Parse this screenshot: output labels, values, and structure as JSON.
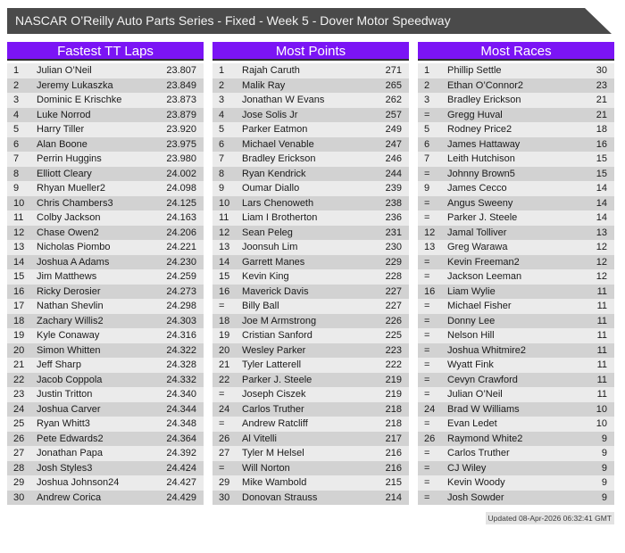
{
  "title_bar": {
    "text": "NASCAR O’Reilly Auto Parts Series - Fixed - Week 5 - Dover Motor Speedway"
  },
  "colors": {
    "accent_purple": "#7b14f5",
    "title_bar_bg": "#4a4a4a",
    "header_underline": "#303030",
    "row_light": "#ebebeb",
    "row_dark": "#d2d2d2",
    "row_text": "#1a1a1a"
  },
  "tables": [
    {
      "title": "Fastest TT Laps",
      "rows": [
        [
          "1",
          "Julian O’Neil",
          "23.807"
        ],
        [
          "2",
          "Jeremy Lukaszka",
          "23.849"
        ],
        [
          "3",
          "Dominic E Krischke",
          "23.873"
        ],
        [
          "4",
          "Luke Norrod",
          "23.879"
        ],
        [
          "5",
          "Harry Tiller",
          "23.920"
        ],
        [
          "6",
          "Alan Boone",
          "23.975"
        ],
        [
          "7",
          "Perrin Huggins",
          "23.980"
        ],
        [
          "8",
          "Elliott Cleary",
          "24.002"
        ],
        [
          "9",
          "Rhyan Mueller2",
          "24.098"
        ],
        [
          "10",
          "Chris Chambers3",
          "24.125"
        ],
        [
          "11",
          "Colby Jackson",
          "24.163"
        ],
        [
          "12",
          "Chase Owen2",
          "24.206"
        ],
        [
          "13",
          "Nicholas Piombo",
          "24.221"
        ],
        [
          "14",
          "Joshua A Adams",
          "24.230"
        ],
        [
          "15",
          "Jim Matthews",
          "24.259"
        ],
        [
          "16",
          "Ricky Derosier",
          "24.273"
        ],
        [
          "17",
          "Nathan Shevlin",
          "24.298"
        ],
        [
          "18",
          "Zachary Willis2",
          "24.303"
        ],
        [
          "19",
          "Kyle Conaway",
          "24.316"
        ],
        [
          "20",
          "Simon Whitten",
          "24.322"
        ],
        [
          "21",
          "Jeff Sharp",
          "24.328"
        ],
        [
          "22",
          "Jacob Coppola",
          "24.332"
        ],
        [
          "23",
          "Justin Tritton",
          "24.340"
        ],
        [
          "24",
          "Joshua Carver",
          "24.344"
        ],
        [
          "25",
          "Ryan Whitt3",
          "24.348"
        ],
        [
          "26",
          "Pete Edwards2",
          "24.364"
        ],
        [
          "27",
          "Jonathan Papa",
          "24.392"
        ],
        [
          "28",
          "Josh Styles3",
          "24.424"
        ],
        [
          "29",
          "Joshua Johnson24",
          "24.427"
        ],
        [
          "30",
          "Andrew Corica",
          "24.429"
        ]
      ]
    },
    {
      "title": "Most Points",
      "rows": [
        [
          "1",
          "Rajah Caruth",
          "271"
        ],
        [
          "2",
          "Malik Ray",
          "265"
        ],
        [
          "3",
          "Jonathan W Evans",
          "262"
        ],
        [
          "4",
          "Jose Solis Jr",
          "257"
        ],
        [
          "5",
          "Parker Eatmon",
          "249"
        ],
        [
          "6",
          "Michael Venable",
          "247"
        ],
        [
          "7",
          "Bradley Erickson",
          "246"
        ],
        [
          "8",
          "Ryan Kendrick",
          "244"
        ],
        [
          "9",
          "Oumar Diallo",
          "239"
        ],
        [
          "10",
          "Lars Chenoweth",
          "238"
        ],
        [
          "11",
          "Liam I Brotherton",
          "236"
        ],
        [
          "12",
          "Sean Peleg",
          "231"
        ],
        [
          "13",
          "Joonsuh Lim",
          "230"
        ],
        [
          "14",
          "Garrett Manes",
          "229"
        ],
        [
          "15",
          "Kevin King",
          "228"
        ],
        [
          "16",
          "Maverick Davis",
          "227"
        ],
        [
          "=",
          "Billy Ball",
          "227"
        ],
        [
          "18",
          "Joe M Armstrong",
          "226"
        ],
        [
          "19",
          "Cristian Sanford",
          "225"
        ],
        [
          "20",
          "Wesley Parker",
          "223"
        ],
        [
          "21",
          "Tyler Latterell",
          "222"
        ],
        [
          "22",
          "Parker J. Steele",
          "219"
        ],
        [
          "=",
          "Joseph Ciszek",
          "219"
        ],
        [
          "24",
          "Carlos Truther",
          "218"
        ],
        [
          "=",
          "Andrew Ratcliff",
          "218"
        ],
        [
          "26",
          "Al Vitelli",
          "217"
        ],
        [
          "27",
          "Tyler M Helsel",
          "216"
        ],
        [
          "=",
          "Will Norton",
          "216"
        ],
        [
          "29",
          "Mike Wambold",
          "215"
        ],
        [
          "30",
          "Donovan Strauss",
          "214"
        ]
      ]
    },
    {
      "title": "Most Races",
      "rows": [
        [
          "1",
          "Phillip Settle",
          "30"
        ],
        [
          "2",
          "Ethan O’Connor2",
          "23"
        ],
        [
          "3",
          "Bradley Erickson",
          "21"
        ],
        [
          "=",
          "Gregg Huval",
          "21"
        ],
        [
          "5",
          "Rodney Price2",
          "18"
        ],
        [
          "6",
          "James Hattaway",
          "16"
        ],
        [
          "7",
          "Leith Hutchison",
          "15"
        ],
        [
          "=",
          "Johnny Brown5",
          "15"
        ],
        [
          "9",
          "James Cecco",
          "14"
        ],
        [
          "=",
          "Angus Sweeny",
          "14"
        ],
        [
          "=",
          "Parker J. Steele",
          "14"
        ],
        [
          "12",
          "Jamal Tolliver",
          "13"
        ],
        [
          "13",
          "Greg Warawa",
          "12"
        ],
        [
          "=",
          "Kevin Freeman2",
          "12"
        ],
        [
          "=",
          "Jackson Leeman",
          "12"
        ],
        [
          "16",
          "Liam Wylie",
          "11"
        ],
        [
          "=",
          "Michael Fisher",
          "11"
        ],
        [
          "=",
          "Donny Lee",
          "11"
        ],
        [
          "=",
          "Nelson Hill",
          "11"
        ],
        [
          "=",
          "Joshua Whitmire2",
          "11"
        ],
        [
          "=",
          "Wyatt Fink",
          "11"
        ],
        [
          "=",
          "Cevyn Crawford",
          "11"
        ],
        [
          "=",
          "Julian O’Neil",
          "11"
        ],
        [
          "24",
          "Brad W Williams",
          "10"
        ],
        [
          "=",
          "Evan Ledet",
          "10"
        ],
        [
          "26",
          "Raymond White2",
          "9"
        ],
        [
          "=",
          "Carlos Truther",
          "9"
        ],
        [
          "=",
          "CJ Wiley",
          "9"
        ],
        [
          "=",
          "Kevin Woody",
          "9"
        ],
        [
          "=",
          "Josh Sowder",
          "9"
        ]
      ]
    }
  ],
  "footer": {
    "updated": "Updated 08-Apr-2026 06:32:41 GMT"
  }
}
